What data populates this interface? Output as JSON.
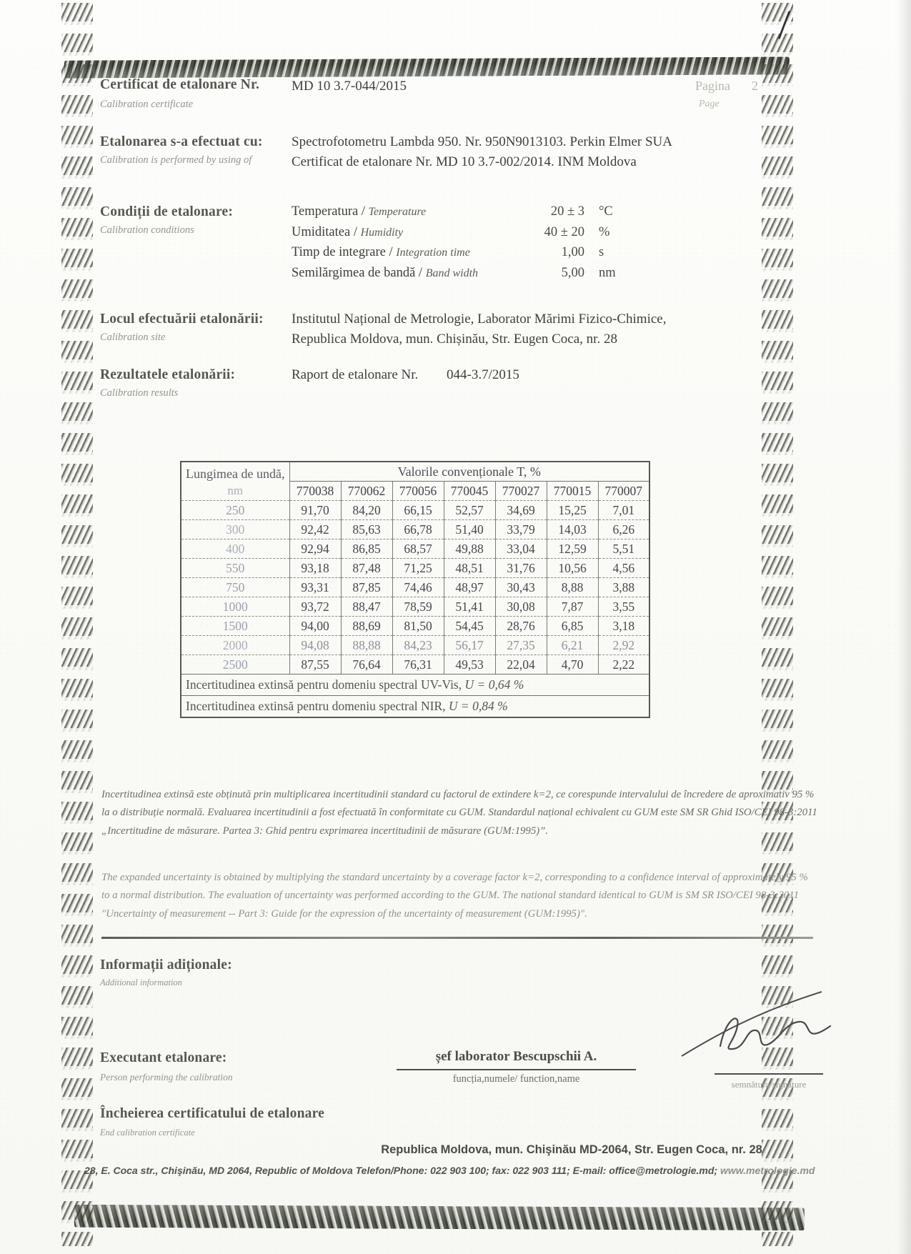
{
  "page": {
    "number_label_ro": "Pagina",
    "number": "2",
    "number_label_en": "Page"
  },
  "header": {
    "title_ro": "Certificat de etalonare Nr.",
    "title_en": "Calibration certificate",
    "certificate_number": "MD 10 3.7-044/2015"
  },
  "performed": {
    "label_ro": "Etalonarea s-a efectuat cu:",
    "label_en": "Calibration is performed by using of",
    "lines": [
      "Spectrofotometru Lambda 950. Nr. 950N9013103. Perkin Elmer SUA",
      "Certificat de etalonare Nr. MD 10 3.7-002/2014. INM Moldova"
    ]
  },
  "conditions": {
    "label_ro": "Condiții de etalonare:",
    "label_en": "Calibration conditions",
    "rows": [
      {
        "ro": "Temperatura",
        "en": "Temperature",
        "value": "20 ± 3",
        "unit": "°C"
      },
      {
        "ro": "Umiditatea",
        "en": "Humidity",
        "value": "40 ± 20",
        "unit": "%"
      },
      {
        "ro": "Timp de integrare",
        "en": "Integration time",
        "value": "1,00",
        "unit": "s"
      },
      {
        "ro": "Semilărgimea de bandă",
        "en": "Band width",
        "value": "5,00",
        "unit": "nm"
      }
    ]
  },
  "site": {
    "label_ro": "Locul efectuării etalonării:",
    "label_en": "Calibration site",
    "lines": [
      "Institutul Național de Metrologie, Laborator Mărimi Fizico-Chimice,",
      "Republica Moldova, mun. Chișinău, Str. Eugen Coca, nr. 28"
    ]
  },
  "results": {
    "label_ro": "Rezultatele etalonării:",
    "label_en": "Calibration results",
    "report_label": "Raport de etalonare Nr.",
    "report_number": "044-3.7/2015"
  },
  "table": {
    "wavelength_header": "Lungimea de undă,",
    "wavelength_unit": "nm",
    "group_header": "Valorile convenționale T, %",
    "filter_ids": [
      "770038",
      "770062",
      "770056",
      "770045",
      "770027",
      "770015",
      "770007"
    ],
    "rows": [
      {
        "wavelength": "250",
        "values": [
          "91,70",
          "84,20",
          "66,15",
          "52,57",
          "34,69",
          "15,25",
          "7,01"
        ]
      },
      {
        "wavelength": "300",
        "values": [
          "92,42",
          "85,63",
          "66,78",
          "51,40",
          "33,79",
          "14,03",
          "6,26"
        ]
      },
      {
        "wavelength": "400",
        "values": [
          "92,94",
          "86,85",
          "68,57",
          "49,88",
          "33,04",
          "12,59",
          "5,51"
        ]
      },
      {
        "wavelength": "550",
        "values": [
          "93,18",
          "87,48",
          "71,25",
          "48,51",
          "31,76",
          "10,56",
          "4,56"
        ]
      },
      {
        "wavelength": "750",
        "values": [
          "93,31",
          "87,85",
          "74,46",
          "48,97",
          "30,43",
          "8,88",
          "3,88"
        ]
      },
      {
        "wavelength": "1000",
        "values": [
          "93,72",
          "88,47",
          "78,59",
          "51,41",
          "30,08",
          "7,87",
          "3,55"
        ]
      },
      {
        "wavelength": "1500",
        "values": [
          "94,00",
          "88,69",
          "81,50",
          "54,45",
          "28,76",
          "6,85",
          "3,18"
        ]
      },
      {
        "wavelength": "2000",
        "values": [
          "94,08",
          "88,88",
          "84,23",
          "56,17",
          "27,35",
          "6,21",
          "2,92"
        ]
      },
      {
        "wavelength": "2500",
        "values": [
          "87,55",
          "76,64",
          "76,31",
          "49,53",
          "22,04",
          "4,70",
          "2,22"
        ]
      }
    ],
    "uncertainty_uvvis_text": "Incertitudinea extinsă pentru domeniu spectral UV-Vis, ",
    "uncertainty_uvvis_value": "U = 0,64 %",
    "uncertainty_nir_text": "Incertitudinea extinsă pentru domeniu spectral NIR, ",
    "uncertainty_nir_value": "U = 0,84 %"
  },
  "disclaimer": {
    "ro": "Incertitudinea extinsă este obținută prin multiplicarea incertitudinii standard cu factorul de extindere k=2, ce corespunde intervalului de încredere de aproximativ 95 % la o distribuție normală. Evaluarea incertitudinii a fost efectuată în conformitate cu GUM. Standardul național echivalent cu GUM este SM SR Ghid ISO/CEI 98-3:2011 „Incertitudine de măsurare. Partea 3: Ghid pentru exprimarea incertitudinii de măsurare (GUM:1995)”.",
    "en": "The expanded uncertainty is obtained by multiplying the standard uncertainty by a coverage factor k=2, corresponding to a confidence interval of approximately 95 % to a normal distribution. The evaluation of uncertainty was performed according to the GUM. The national standard identical to GUM is SM SR ISO/CEI 98-3:2011 \"Uncertainty of measurement -- Part 3: Guide for the expression of the uncertainty of measurement (GUM:1995)\"."
  },
  "additional": {
    "label_ro": "Informații adiționale:",
    "label_en": "Additional information"
  },
  "signature": {
    "label_ro": "Executant etalonare:",
    "label_en": "Person performing the calibration",
    "name": "șef laborator Bescupschii A.",
    "function_label": "funcția,numele/ function,name",
    "signature_label": "semnătura/signature"
  },
  "closing": {
    "label_ro": "Încheierea certificatului de etalonare",
    "label_en": "End calibration certificate"
  },
  "footer": {
    "line1": "Republica Moldova, mun. Chişinău MD-2064, Str. Eugen Coca, nr. 28",
    "line2": "28, E. Coca str., Chişinău, MD 2064, Republic of Moldova Telefon/Phone: 022 903 100; fax: 022 903 111; E-mail: office@metrologie.md; ",
    "website": "www.metrologie.md"
  }
}
